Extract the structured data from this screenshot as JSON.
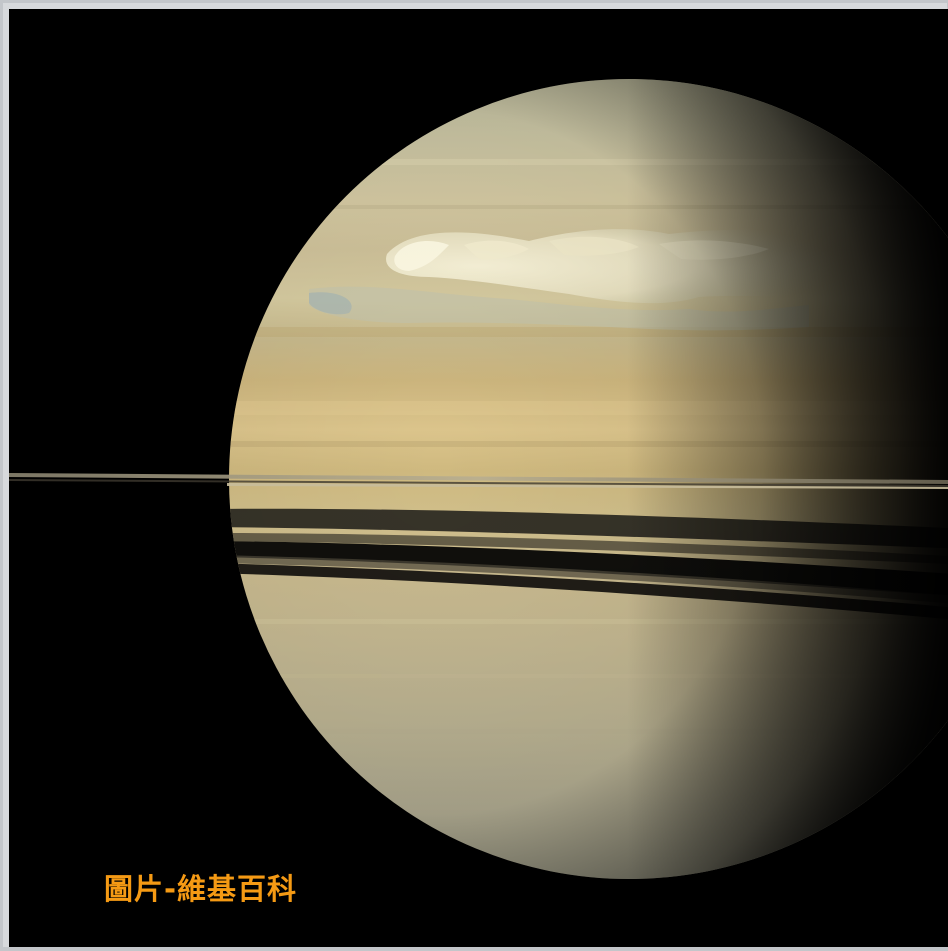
{
  "image": {
    "subject": "saturn-planet-photo",
    "colors": {
      "space": "#000000",
      "planet_light": "#e6d7ac",
      "planet_mid": "#cdb67e",
      "planet_dark": "#6f6446",
      "storm": "#f3ecd0",
      "rings": "#9c9177"
    }
  },
  "caption": {
    "text": "圖片-維基百科",
    "color": "#f59a14"
  }
}
